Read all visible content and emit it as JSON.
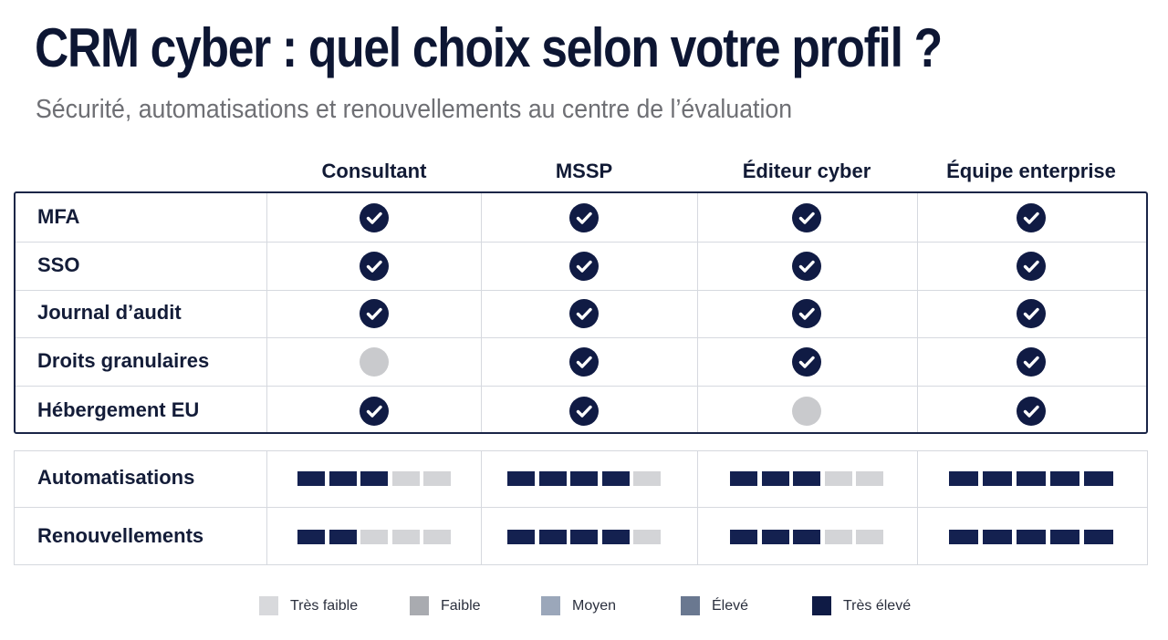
{
  "title": "CRM cyber : quel choix selon votre profil ?",
  "subtitle": "Sécurité, automatisations et renouvellements au centre de l’évaluation",
  "columns": [
    "Consultant",
    "MSSP",
    "Éditeur cyber",
    "Équipe enterprise"
  ],
  "chart_data": {
    "type": "table",
    "features": [
      {
        "label": "MFA",
        "values": [
          true,
          true,
          true,
          true
        ]
      },
      {
        "label": "SSO",
        "values": [
          true,
          true,
          true,
          true
        ]
      },
      {
        "label": "Journal d’audit",
        "values": [
          true,
          true,
          true,
          true
        ]
      },
      {
        "label": "Droits granulaires",
        "values": [
          false,
          true,
          true,
          true
        ]
      },
      {
        "label": "Hébergement EU",
        "values": [
          true,
          true,
          false,
          true
        ]
      }
    ],
    "ratings": [
      {
        "label": "Automatisations",
        "levels": [
          3,
          4,
          3,
          5
        ]
      },
      {
        "label": "Renouvellements",
        "levels": [
          2,
          4,
          3,
          5
        ]
      }
    ],
    "rating_max": 5
  },
  "legend": [
    {
      "label": "Très faible",
      "color": "#d8d9dc"
    },
    {
      "label": "Faible",
      "color": "#a9abb0"
    },
    {
      "label": "Moyen",
      "color": "#9ba7ba"
    },
    {
      "label": "Élevé",
      "color": "#6a7890"
    },
    {
      "label": "Très élevé",
      "color": "#0f1b45"
    }
  ],
  "colors": {
    "filled": "#142150",
    "empty": "#d3d4d7",
    "check": "#101b44",
    "absent": "#c9cacd"
  }
}
